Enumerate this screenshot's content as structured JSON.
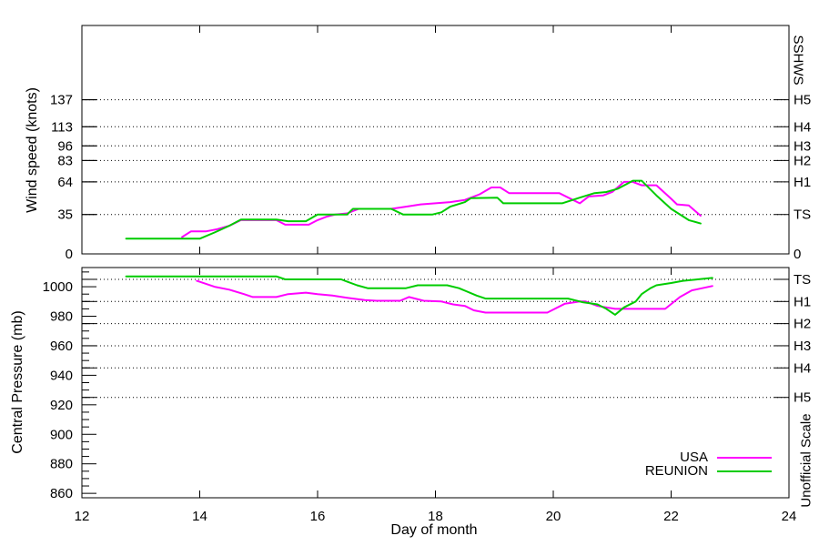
{
  "page": {
    "background": "#ffffff"
  },
  "colors": {
    "usa": "#ff00ff",
    "reunion": "#00cc00",
    "axis": "#000000"
  },
  "xaxis": {
    "label": "Day of month",
    "min": 12,
    "max": 24,
    "ticks": [
      12,
      14,
      16,
      18,
      20,
      22,
      24
    ]
  },
  "legend": {
    "entries": [
      {
        "label": "USA",
        "color": "#ff00ff"
      },
      {
        "label": "REUNION",
        "color": "#00cc00"
      }
    ]
  },
  "chart_data": [
    {
      "type": "line",
      "panel": "top",
      "ylabel": "Wind speed (knots)",
      "right_axis_label": "SSHWS",
      "xlabel": "Day of month",
      "xlim": [
        12,
        24
      ],
      "xticks": [
        14,
        16,
        18,
        20,
        22
      ],
      "ylim": [
        0,
        203
      ],
      "yticks": [
        0,
        35,
        64,
        83,
        96,
        113,
        137
      ],
      "grid": "horizontal dotted lines at category thresholds",
      "thresholds": [
        {
          "value": 35,
          "label": "TS"
        },
        {
          "value": 64,
          "label": "H1"
        },
        {
          "value": 83,
          "label": "H2"
        },
        {
          "value": 96,
          "label": "H3"
        },
        {
          "value": 113,
          "label": "H4"
        },
        {
          "value": 137,
          "label": "H5"
        }
      ],
      "right_axis_extra_label": {
        "value": 0,
        "label": "0"
      },
      "series": [
        {
          "name": "USA",
          "color": "#ff00ff",
          "points": [
            [
              13.7,
              15
            ],
            [
              13.85,
              20
            ],
            [
              14.1,
              20
            ],
            [
              14.3,
              22
            ],
            [
              14.5,
              25
            ],
            [
              14.7,
              30
            ],
            [
              15.0,
              30
            ],
            [
              15.3,
              30
            ],
            [
              15.45,
              26
            ],
            [
              15.85,
              26
            ],
            [
              16.0,
              30
            ],
            [
              16.15,
              33
            ],
            [
              16.3,
              35
            ],
            [
              16.5,
              36
            ],
            [
              16.7,
              40
            ],
            [
              17.25,
              40
            ],
            [
              17.5,
              42
            ],
            [
              17.75,
              44
            ],
            [
              18.0,
              45
            ],
            [
              18.25,
              46
            ],
            [
              18.5,
              48
            ],
            [
              18.75,
              53
            ],
            [
              18.95,
              59
            ],
            [
              19.1,
              59
            ],
            [
              19.25,
              54
            ],
            [
              20.1,
              54
            ],
            [
              20.45,
              45
            ],
            [
              20.6,
              51
            ],
            [
              20.85,
              52
            ],
            [
              21.0,
              55
            ],
            [
              21.2,
              64
            ],
            [
              21.35,
              64
            ],
            [
              21.5,
              61
            ],
            [
              21.75,
              61
            ],
            [
              22.0,
              49
            ],
            [
              22.1,
              44
            ],
            [
              22.3,
              43
            ],
            [
              22.5,
              34
            ]
          ]
        },
        {
          "name": "REUNION",
          "color": "#00cc00",
          "points": [
            [
              12.75,
              13.5
            ],
            [
              14.0,
              13.5
            ],
            [
              14.25,
              19
            ],
            [
              14.5,
              25
            ],
            [
              14.7,
              30.5
            ],
            [
              15.3,
              30.5
            ],
            [
              15.5,
              29
            ],
            [
              15.8,
              29
            ],
            [
              16.0,
              35
            ],
            [
              16.5,
              35
            ],
            [
              16.6,
              40
            ],
            [
              17.25,
              40
            ],
            [
              17.45,
              35
            ],
            [
              17.95,
              35
            ],
            [
              18.1,
              37
            ],
            [
              18.25,
              42
            ],
            [
              18.5,
              46
            ],
            [
              18.6,
              49.5
            ],
            [
              19.05,
              50
            ],
            [
              19.15,
              45
            ],
            [
              20.15,
              45
            ],
            [
              20.45,
              50
            ],
            [
              20.7,
              54
            ],
            [
              20.9,
              55
            ],
            [
              21.1,
              58
            ],
            [
              21.35,
              65
            ],
            [
              21.5,
              65
            ],
            [
              21.75,
              52
            ],
            [
              22.0,
              40
            ],
            [
              22.3,
              30
            ],
            [
              22.5,
              27
            ]
          ]
        }
      ]
    },
    {
      "type": "line",
      "panel": "bottom",
      "ylabel": "Central Pressure (mb)",
      "right_axis_label": "Unofficial Scale",
      "xlabel": "Day of month",
      "xlim": [
        12,
        24
      ],
      "xticks": [
        14,
        16,
        18,
        20,
        22
      ],
      "ylim": [
        857,
        1013
      ],
      "yticks": [
        860,
        880,
        900,
        920,
        940,
        960,
        980,
        1000
      ],
      "yticks_minor_step": 5,
      "grid": "horizontal dotted lines at category thresholds",
      "thresholds": [
        {
          "value": 1005,
          "label": "TS"
        },
        {
          "value": 990,
          "label": "H1"
        },
        {
          "value": 975,
          "label": "H2"
        },
        {
          "value": 960,
          "label": "H3"
        },
        {
          "value": 945,
          "label": "H4"
        },
        {
          "value": 925,
          "label": "H5"
        }
      ],
      "series": [
        {
          "name": "USA",
          "color": "#ff00ff",
          "points": [
            [
              13.95,
              1004
            ],
            [
              14.25,
              1000
            ],
            [
              14.5,
              998
            ],
            [
              14.75,
              995
            ],
            [
              14.9,
              993
            ],
            [
              15.3,
              993
            ],
            [
              15.5,
              995
            ],
            [
              15.8,
              996
            ],
            [
              16.0,
              995
            ],
            [
              16.25,
              994
            ],
            [
              16.5,
              992.5
            ],
            [
              16.8,
              991
            ],
            [
              17.0,
              990.5
            ],
            [
              17.4,
              990.5
            ],
            [
              17.55,
              993
            ],
            [
              17.8,
              990.5
            ],
            [
              18.1,
              990
            ],
            [
              18.3,
              988
            ],
            [
              18.5,
              987
            ],
            [
              18.65,
              984
            ],
            [
              18.85,
              982.5
            ],
            [
              19.9,
              982.5
            ],
            [
              20.2,
              988.5
            ],
            [
              20.45,
              990
            ],
            [
              20.55,
              990
            ],
            [
              20.75,
              987
            ],
            [
              21.05,
              985
            ],
            [
              21.9,
              985
            ],
            [
              22.15,
              993
            ],
            [
              22.35,
              997.5
            ],
            [
              22.7,
              1000.5
            ]
          ]
        },
        {
          "name": "REUNION",
          "color": "#00cc00",
          "points": [
            [
              12.75,
              1007
            ],
            [
              15.3,
              1007
            ],
            [
              15.45,
              1005
            ],
            [
              16.4,
              1005
            ],
            [
              16.67,
              1001
            ],
            [
              16.85,
              999
            ],
            [
              17.5,
              999
            ],
            [
              17.7,
              1001
            ],
            [
              18.2,
              1001
            ],
            [
              18.4,
              999
            ],
            [
              18.7,
              994
            ],
            [
              18.85,
              992
            ],
            [
              20.25,
              992
            ],
            [
              20.5,
              989.5
            ],
            [
              20.75,
              988
            ],
            [
              20.9,
              985
            ],
            [
              21.05,
              981
            ],
            [
              21.2,
              986
            ],
            [
              21.4,
              990
            ],
            [
              21.5,
              995
            ],
            [
              21.65,
              999
            ],
            [
              21.75,
              1001
            ],
            [
              22.0,
              1002.5
            ],
            [
              22.2,
              1004
            ],
            [
              22.45,
              1005
            ],
            [
              22.7,
              1006
            ]
          ]
        }
      ]
    }
  ]
}
